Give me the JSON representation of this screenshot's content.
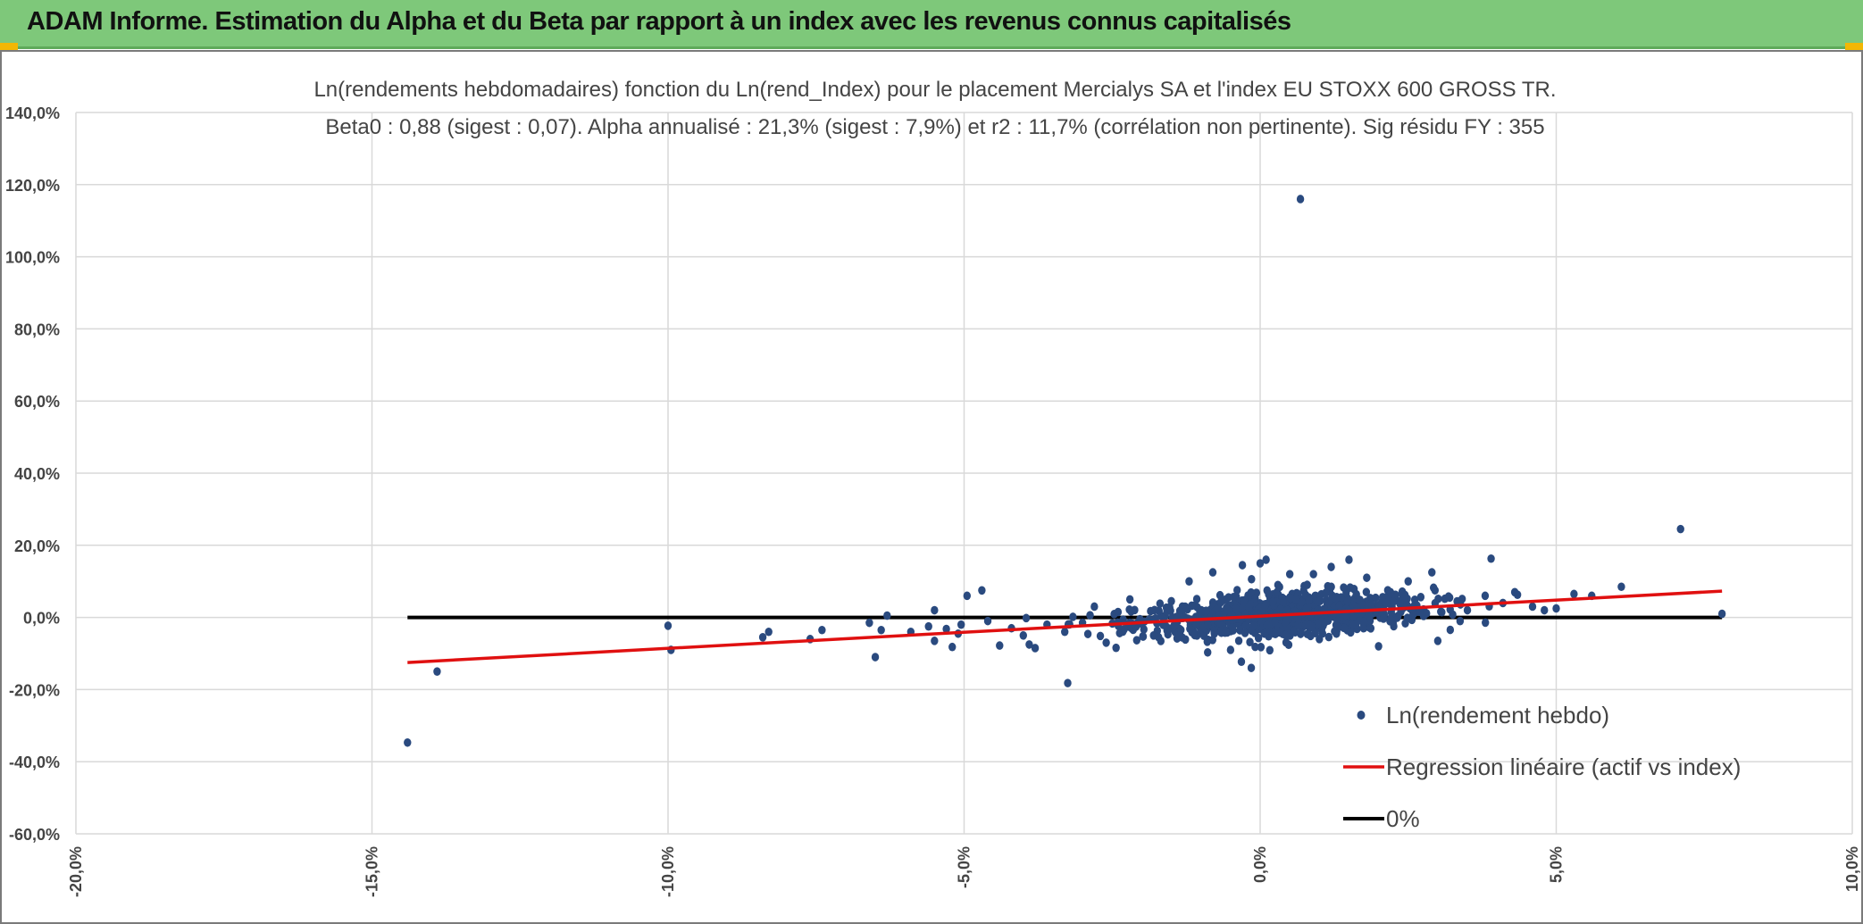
{
  "header": {
    "title": "ADAM Informe. Estimation du Alpha et du Beta par rapport à un index avec les revenus connus capitalisés"
  },
  "colors": {
    "header_bg": "#7ec87a",
    "points": "#2a4a7f",
    "regression": "#e01010",
    "zero_line": "#000000",
    "grid": "#d9d9d9"
  },
  "chart_data": {
    "type": "scatter",
    "title_lines": [
      "Ln(rendements hebdomadaires) fonction du Ln(rend_Index) pour le placement Mercialys SA et l'index EU STOXX 600 GROSS TR.",
      "Beta0 : 0,88 (sigest : 0,07). Alpha annualisé : 21,3% (sigest : 7,9%) et r2 : 11,7% (corrélation non pertinente). Sig résidu FY : 355"
    ],
    "xlim": [
      -20,
      10
    ],
    "ylim": [
      -60,
      140
    ],
    "x_ticks": [
      -20,
      -15,
      -10,
      -5,
      0,
      5,
      10
    ],
    "x_tick_labels": [
      "-20,0%",
      "-15,0%",
      "-10,0%",
      "-5,0%",
      "0,0%",
      "5,0%",
      "10,0%"
    ],
    "y_ticks": [
      140,
      120,
      100,
      80,
      60,
      40,
      20,
      0,
      -20,
      -40,
      -60
    ],
    "y_tick_labels": [
      "140,0%",
      "120,0%",
      "100,0%",
      "80,0%",
      "60,0%",
      "40,0%",
      "20,0%",
      "0,0%",
      "-20,0%",
      "-40,0%",
      "-60,0%"
    ],
    "grid": true,
    "legend_position": "bottom-right",
    "series": [
      {
        "name": "Ln(rendement hebdo)",
        "kind": "scatter",
        "points": [
          [
            -14.4,
            -34.7
          ],
          [
            -13.9,
            -15.0
          ],
          [
            -10.0,
            -2.3
          ],
          [
            -9.95,
            -9.0
          ],
          [
            -8.4,
            -5.5
          ],
          [
            -8.3,
            -4.0
          ],
          [
            -7.6,
            -6.0
          ],
          [
            -7.4,
            -3.5
          ],
          [
            -6.5,
            -11.0
          ],
          [
            -6.6,
            -1.5
          ],
          [
            -6.3,
            0.5
          ],
          [
            -6.4,
            -3.5
          ],
          [
            -5.9,
            -4.0
          ],
          [
            -5.6,
            -2.5
          ],
          [
            -5.5,
            -6.5
          ],
          [
            -5.5,
            2.0
          ],
          [
            -5.3,
            -3.2
          ],
          [
            -5.2,
            -8.2
          ],
          [
            -5.1,
            -4.5
          ],
          [
            -5.05,
            -2.0
          ],
          [
            -4.95,
            6.0
          ],
          [
            -4.7,
            7.5
          ],
          [
            -4.6,
            -1.0
          ],
          [
            -4.4,
            -7.8
          ],
          [
            -4.2,
            -3.0
          ],
          [
            -4.0,
            -5.0
          ],
          [
            -3.9,
            -7.5
          ],
          [
            -3.8,
            -8.5
          ],
          [
            -3.6,
            -2.0
          ],
          [
            -3.3,
            -4.0
          ],
          [
            -3.25,
            -18.2
          ],
          [
            -3.0,
            -1.5
          ],
          [
            -2.8,
            3.0
          ],
          [
            -2.6,
            -7.0
          ],
          [
            -2.4,
            1.5
          ],
          [
            -2.2,
            5.0
          ],
          [
            -1.8,
            -5.0
          ],
          [
            -1.5,
            4.5
          ],
          [
            -1.2,
            10.0
          ],
          [
            -0.8,
            12.5
          ],
          [
            -0.5,
            -9.0
          ],
          [
            -0.3,
            14.5
          ],
          [
            -0.15,
            -14.0
          ],
          [
            0.0,
            15.0
          ],
          [
            0.1,
            16.0
          ],
          [
            0.3,
            9.0
          ],
          [
            0.5,
            12.0
          ],
          [
            0.6,
            5.0
          ],
          [
            0.68,
            116.0
          ],
          [
            0.9,
            12.0
          ],
          [
            1.0,
            -6.0
          ],
          [
            1.2,
            14.0
          ],
          [
            1.5,
            16.0
          ],
          [
            1.8,
            11.0
          ],
          [
            2.0,
            -8.0
          ],
          [
            2.2,
            7.0
          ],
          [
            2.5,
            10.0
          ],
          [
            2.9,
            12.5
          ],
          [
            3.0,
            -6.5
          ],
          [
            3.2,
            5.5
          ],
          [
            3.5,
            2.0
          ],
          [
            3.8,
            6.0
          ],
          [
            3.9,
            16.3
          ],
          [
            4.1,
            4.0
          ],
          [
            4.3,
            7.0
          ],
          [
            4.6,
            3.0
          ],
          [
            4.8,
            2.0
          ],
          [
            5.0,
            2.5
          ],
          [
            5.3,
            6.5
          ],
          [
            5.6,
            6.0
          ],
          [
            6.1,
            8.5
          ],
          [
            7.1,
            24.5
          ],
          [
            7.8,
            1.0
          ]
        ]
      },
      {
        "name": "Regression linéaire (actif vs index)",
        "kind": "line",
        "points": [
          [
            -14.4,
            -12.5
          ],
          [
            7.8,
            7.3
          ]
        ]
      },
      {
        "name": "0%",
        "kind": "line",
        "points": [
          [
            -14.4,
            0.0
          ],
          [
            7.8,
            0.0
          ]
        ]
      }
    ]
  }
}
